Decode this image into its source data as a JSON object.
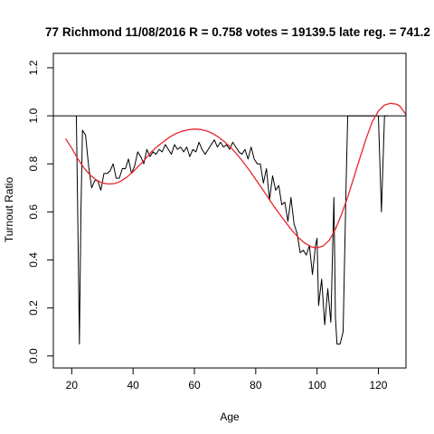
{
  "chart_data": {
    "type": "line",
    "title": "77 Richmond 11/08/2016 R = 0.758 votes = 19139.5 late reg. = 741.2",
    "xlabel": "Age",
    "ylabel": "Turnout Ratio",
    "xlim": [
      14,
      129
    ],
    "ylim": [
      -0.05,
      1.26
    ],
    "x_ticks": [
      20,
      40,
      60,
      80,
      100,
      120
    ],
    "y_ticks": [
      0.0,
      0.2,
      0.4,
      0.6,
      0.8,
      1.0,
      1.2
    ],
    "x_tick_labels": [
      "20",
      "40",
      "60",
      "80",
      "100",
      "120"
    ],
    "y_tick_labels": [
      "0.0",
      "0.2",
      "0.4",
      "0.6",
      "0.8",
      "1.0",
      "1.2"
    ],
    "reference_line": {
      "y": 1.0,
      "color": "#000000"
    },
    "grid": false,
    "legend": "none",
    "series": [
      {
        "style": "observed",
        "color": "#000000",
        "points": [
          [
            21.5,
            1.0
          ],
          [
            22.0,
            0.55
          ],
          [
            22.5,
            0.05
          ],
          [
            23.0,
            0.6
          ],
          [
            23.5,
            0.94
          ],
          [
            24.5,
            0.92
          ],
          [
            25.5,
            0.79
          ],
          [
            26.5,
            0.7
          ],
          [
            27.5,
            0.73
          ],
          [
            28.5,
            0.73
          ],
          [
            29.5,
            0.69
          ],
          [
            30.5,
            0.76
          ],
          [
            31.5,
            0.76
          ],
          [
            32.5,
            0.77
          ],
          [
            33.5,
            0.8
          ],
          [
            34.5,
            0.74
          ],
          [
            35.5,
            0.74
          ],
          [
            36.5,
            0.78
          ],
          [
            37.5,
            0.78
          ],
          [
            38.5,
            0.82
          ],
          [
            39.5,
            0.76
          ],
          [
            40.5,
            0.79
          ],
          [
            41.5,
            0.85
          ],
          [
            42.5,
            0.83
          ],
          [
            43.5,
            0.8
          ],
          [
            44.5,
            0.86
          ],
          [
            45.5,
            0.83
          ],
          [
            46.5,
            0.85
          ],
          [
            47.5,
            0.84
          ],
          [
            48.5,
            0.86
          ],
          [
            49.5,
            0.85
          ],
          [
            50.5,
            0.88
          ],
          [
            51.5,
            0.86
          ],
          [
            52.5,
            0.84
          ],
          [
            53.5,
            0.88
          ],
          [
            54.5,
            0.86
          ],
          [
            55.5,
            0.87
          ],
          [
            56.5,
            0.85
          ],
          [
            57.5,
            0.87
          ],
          [
            58.5,
            0.83
          ],
          [
            59.5,
            0.86
          ],
          [
            60.5,
            0.85
          ],
          [
            61.5,
            0.89
          ],
          [
            62.5,
            0.86
          ],
          [
            63.5,
            0.84
          ],
          [
            64.5,
            0.86
          ],
          [
            65.5,
            0.88
          ],
          [
            66.5,
            0.9
          ],
          [
            67.5,
            0.87
          ],
          [
            68.5,
            0.89
          ],
          [
            69.5,
            0.87
          ],
          [
            70.5,
            0.88
          ],
          [
            71.5,
            0.86
          ],
          [
            72.5,
            0.89
          ],
          [
            73.5,
            0.87
          ],
          [
            74.5,
            0.85
          ],
          [
            75.5,
            0.84
          ],
          [
            76.5,
            0.86
          ],
          [
            77.5,
            0.82
          ],
          [
            78.5,
            0.87
          ],
          [
            79.5,
            0.82
          ],
          [
            80.5,
            0.8
          ],
          [
            81.5,
            0.8
          ],
          [
            82.5,
            0.72
          ],
          [
            83.5,
            0.78
          ],
          [
            84.5,
            0.65
          ],
          [
            85.5,
            0.75
          ],
          [
            86.5,
            0.69
          ],
          [
            87.5,
            0.71
          ],
          [
            88.5,
            0.63
          ],
          [
            89.5,
            0.64
          ],
          [
            90.5,
            0.56
          ],
          [
            91.5,
            0.66
          ],
          [
            92.5,
            0.55
          ],
          [
            93.5,
            0.51
          ],
          [
            94.5,
            0.43
          ],
          [
            95.5,
            0.44
          ],
          [
            96.5,
            0.42
          ],
          [
            97.5,
            0.46
          ],
          [
            98.5,
            0.34
          ],
          [
            99.5,
            0.46
          ],
          [
            100.0,
            0.49
          ],
          [
            100.5,
            0.21
          ],
          [
            101.5,
            0.32
          ],
          [
            102.5,
            0.13
          ],
          [
            103.5,
            0.28
          ],
          [
            104.5,
            0.14
          ],
          [
            105.5,
            0.66
          ],
          [
            106.0,
            0.16
          ],
          [
            106.5,
            0.05
          ],
          [
            107.5,
            0.05
          ],
          [
            108.5,
            0.1
          ],
          [
            109.5,
            0.73
          ],
          [
            110.0,
            1.0
          ],
          [
            112.5,
            1.0
          ],
          [
            115.0,
            1.0
          ],
          [
            117.5,
            1.0
          ],
          [
            120.0,
            1.0
          ],
          [
            121.0,
            0.6
          ],
          [
            122.0,
            1.0
          ],
          [
            123.0,
            1.0
          ]
        ]
      },
      {
        "style": "fitted",
        "color": "#e8262a",
        "points": [
          [
            18,
            0.905
          ],
          [
            20,
            0.865
          ],
          [
            22,
            0.82
          ],
          [
            24,
            0.783
          ],
          [
            26,
            0.753
          ],
          [
            28,
            0.733
          ],
          [
            30,
            0.72
          ],
          [
            32,
            0.716
          ],
          [
            34,
            0.718
          ],
          [
            36,
            0.728
          ],
          [
            38,
            0.745
          ],
          [
            40,
            0.767
          ],
          [
            42,
            0.793
          ],
          [
            44,
            0.82
          ],
          [
            46,
            0.85
          ],
          [
            48,
            0.873
          ],
          [
            50,
            0.893
          ],
          [
            52,
            0.912
          ],
          [
            54,
            0.926
          ],
          [
            56,
            0.936
          ],
          [
            58,
            0.942
          ],
          [
            60,
            0.945
          ],
          [
            62,
            0.943
          ],
          [
            64,
            0.937
          ],
          [
            66,
            0.926
          ],
          [
            68,
            0.91
          ],
          [
            70,
            0.89
          ],
          [
            72,
            0.866
          ],
          [
            74,
            0.838
          ],
          [
            76,
            0.806
          ],
          [
            78,
            0.772
          ],
          [
            80,
            0.735
          ],
          [
            82,
            0.698
          ],
          [
            84,
            0.66
          ],
          [
            86,
            0.622
          ],
          [
            88,
            0.587
          ],
          [
            90,
            0.553
          ],
          [
            92,
            0.52
          ],
          [
            94,
            0.492
          ],
          [
            96,
            0.47
          ],
          [
            98,
            0.455
          ],
          [
            100,
            0.45
          ],
          [
            102,
            0.458
          ],
          [
            104,
            0.482
          ],
          [
            106,
            0.528
          ],
          [
            108,
            0.59
          ],
          [
            110,
            0.662
          ],
          [
            112,
            0.743
          ],
          [
            114,
            0.825
          ],
          [
            116,
            0.905
          ],
          [
            118,
            0.975
          ],
          [
            120,
            1.02
          ],
          [
            122,
            1.045
          ],
          [
            124,
            1.052
          ],
          [
            126,
            1.048
          ],
          [
            127,
            1.04
          ],
          [
            128,
            1.023
          ],
          [
            129,
            1.005
          ]
        ]
      }
    ]
  }
}
